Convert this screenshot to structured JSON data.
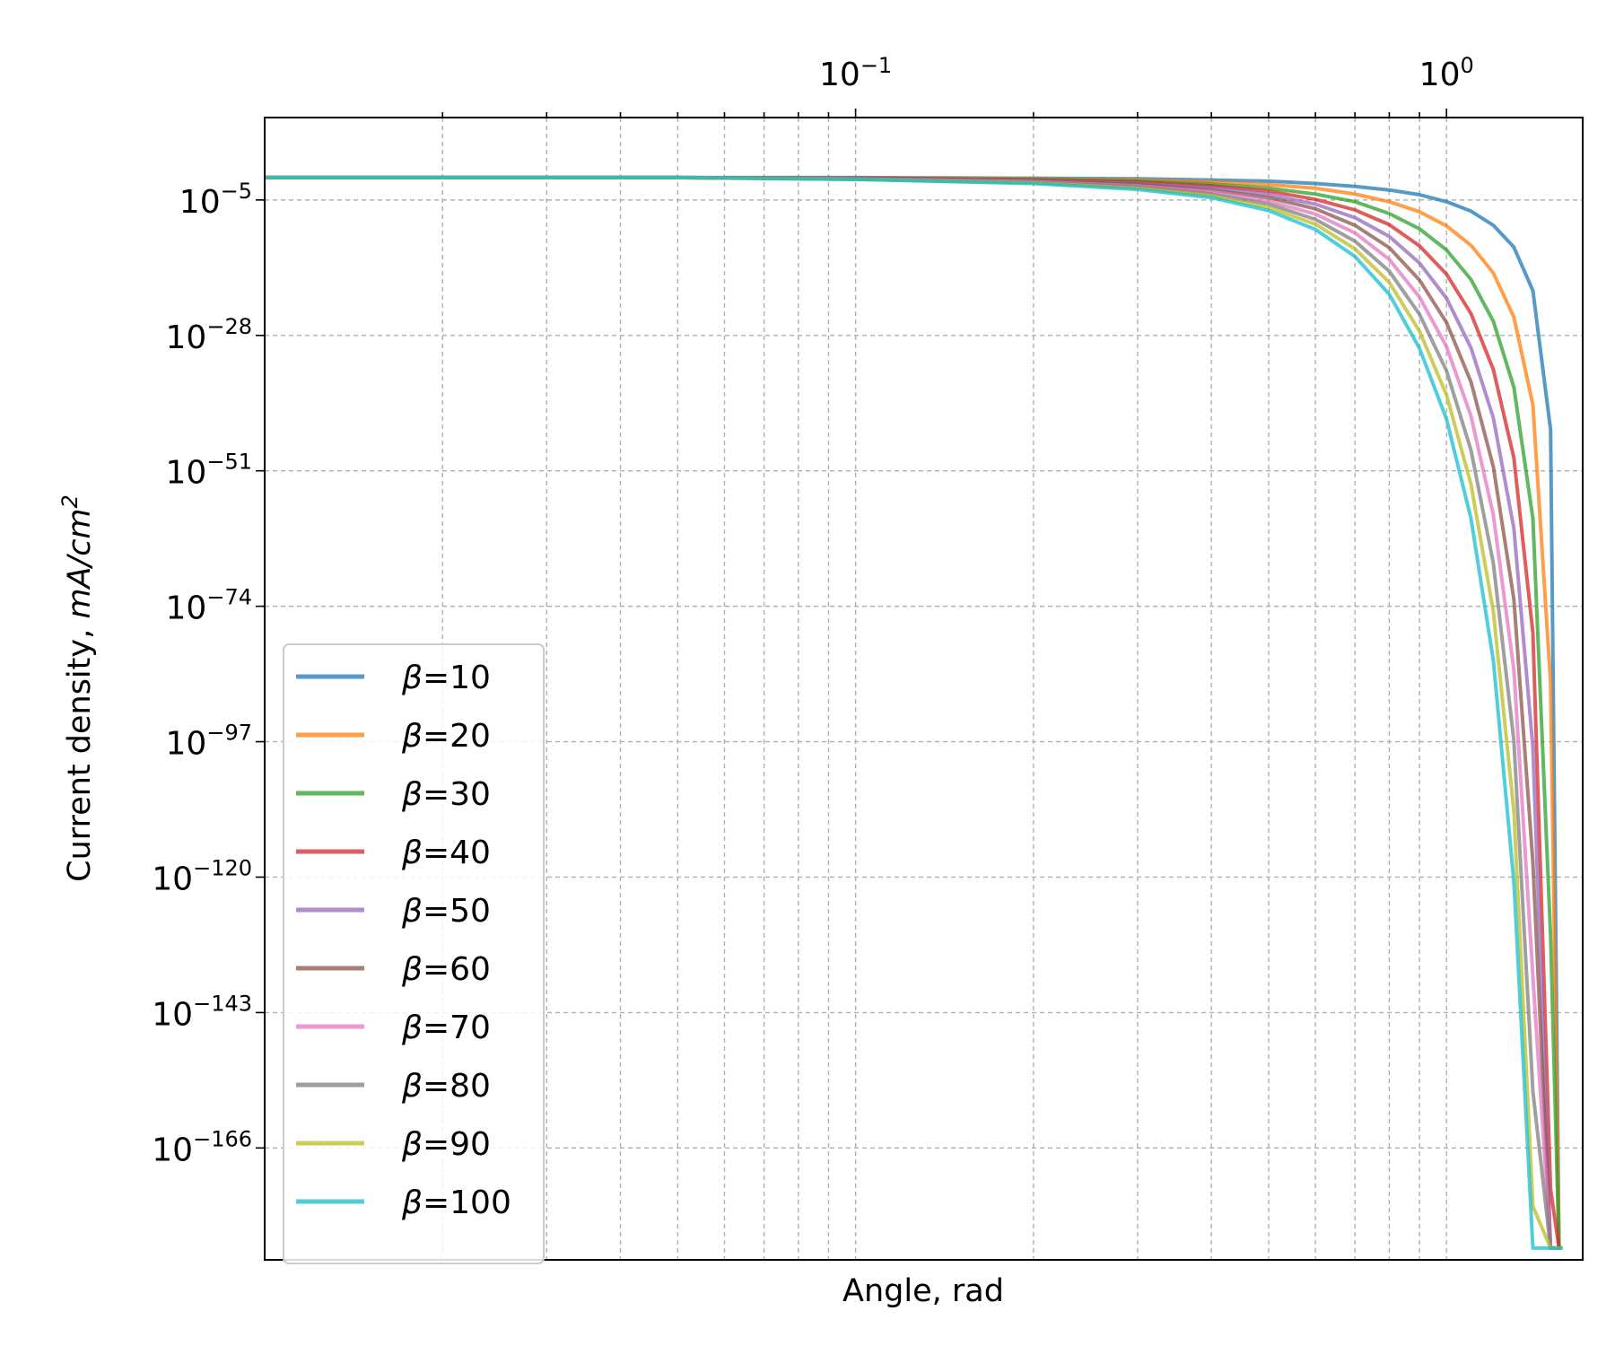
{
  "chart_data": {
    "type": "line",
    "xlabel": "Angle, rad",
    "ylabel_prefix": "Current density, ",
    "ylabel_unit_main": "mA/cm",
    "ylabel_unit_sup": "2",
    "x_scale": "log",
    "y_scale": "log",
    "xlim": [
      0.01,
      1.7
    ],
    "ylim_log10": [
      -185,
      9
    ],
    "x_tick_labels": [
      {
        "base": "10",
        "exp": "−1",
        "value": 0.1
      },
      {
        "base": "10",
        "exp": "0",
        "value": 1
      }
    ],
    "y_tick_labels": [
      {
        "base": "10",
        "exp": "−5",
        "log10": -5
      },
      {
        "base": "10",
        "exp": "−28",
        "log10": -28
      },
      {
        "base": "10",
        "exp": "−51",
        "log10": -51
      },
      {
        "base": "10",
        "exp": "−74",
        "log10": -74
      },
      {
        "base": "10",
        "exp": "−97",
        "log10": -97
      },
      {
        "base": "10",
        "exp": "−120",
        "log10": -120
      },
      {
        "base": "10",
        "exp": "−143",
        "log10": -143
      },
      {
        "base": "10",
        "exp": "−166",
        "log10": -166
      }
    ],
    "grid": true,
    "legend_position": "lower-left",
    "series": [
      {
        "name": "β=10",
        "beta": 10,
        "color": "#1f77b4"
      },
      {
        "name": "β=20",
        "beta": 20,
        "color": "#ff7f0e"
      },
      {
        "name": "β=30",
        "beta": 30,
        "color": "#2ca02c"
      },
      {
        "name": "β=40",
        "beta": 40,
        "color": "#d62728"
      },
      {
        "name": "β=50",
        "beta": 50,
        "color": "#9467bd"
      },
      {
        "name": "β=60",
        "beta": 60,
        "color": "#8c564b"
      },
      {
        "name": "β=70",
        "beta": 70,
        "color": "#e377c2"
      },
      {
        "name": "β=80",
        "beta": 80,
        "color": "#7f7f7f"
      },
      {
        "name": "β=90",
        "beta": 90,
        "color": "#bcbd22"
      },
      {
        "name": "β=100",
        "beta": 100,
        "color": "#17becf"
      }
    ],
    "x_sample_points": [
      0.01,
      0.05,
      0.1,
      0.2,
      0.3,
      0.4,
      0.5,
      0.6,
      0.7,
      0.8,
      0.9,
      1.0,
      1.1,
      1.2,
      1.3,
      1.4,
      1.5,
      1.55,
      1.57,
      1.5708
    ],
    "values_log10": [
      [
        -1.2,
        -1.2,
        -1.2,
        -1.3,
        -1.4,
        -1.6,
        -1.8,
        -2.2,
        -2.7,
        -3.3,
        -4.1,
        -5.3,
        -6.9,
        -9.3,
        -13.0,
        -20.4,
        -44,
        -183,
        -183,
        -183
      ],
      [
        -1.2,
        -1.2,
        -1.3,
        -1.4,
        -1.6,
        -1.9,
        -2.4,
        -3.0,
        -4.0,
        -5.3,
        -7.0,
        -9.4,
        -12.7,
        -17.4,
        -24.9,
        -39.8,
        -87,
        -183,
        -183,
        -183
      ],
      [
        -1.2,
        -1.2,
        -1.3,
        -1.5,
        -1.8,
        -2.3,
        -3.0,
        -4.0,
        -5.3,
        -7.3,
        -9.9,
        -13.5,
        -18.5,
        -25.6,
        -36.8,
        -59.1,
        -130,
        -183,
        -183,
        -183
      ],
      [
        -1.2,
        -1.2,
        -1.3,
        -1.6,
        -2.0,
        -2.6,
        -3.5,
        -4.9,
        -6.7,
        -9.2,
        -12.8,
        -17.6,
        -24.3,
        -33.8,
        -48.8,
        -78.5,
        -173,
        -183,
        -183,
        -183
      ],
      [
        -1.2,
        -1.2,
        -1.4,
        -1.7,
        -2.2,
        -2.9,
        -4.1,
        -5.7,
        -8.0,
        -11.2,
        -15.7,
        -21.7,
        -30.1,
        -42.0,
        -60.8,
        -98.0,
        -183,
        -183,
        -183,
        -183
      ],
      [
        -1.2,
        -1.2,
        -1.4,
        -1.8,
        -2.4,
        -3.3,
        -4.6,
        -6.5,
        -9.3,
        -13.1,
        -18.6,
        -25.8,
        -35.9,
        -50.3,
        -72.8,
        -117.5,
        -183,
        -183,
        -183,
        -183
      ],
      [
        -1.2,
        -1.2,
        -1.4,
        -1.9,
        -2.6,
        -3.6,
        -5.2,
        -7.4,
        -10.6,
        -15.1,
        -21.5,
        -29.9,
        -41.7,
        -58.5,
        -84.8,
        -136.9,
        -183,
        -183,
        -183,
        -183
      ],
      [
        -1.2,
        -1.2,
        -1.5,
        -2.0,
        -2.8,
        -4.0,
        -5.7,
        -8.3,
        -12.0,
        -17.1,
        -24.4,
        -34.0,
        -47.5,
        -66.7,
        -96.8,
        -156.4,
        -183,
        -183,
        -183,
        -183
      ],
      [
        -1.2,
        -1.2,
        -1.5,
        -2.1,
        -3.0,
        -4.3,
        -6.3,
        -9.1,
        -13.3,
        -19.0,
        -27.3,
        -38.1,
        -53.3,
        -74.9,
        -108.8,
        -175.9,
        -183,
        -183,
        -183,
        -183
      ],
      [
        -1.2,
        -1.2,
        -1.5,
        -2.2,
        -3.2,
        -4.6,
        -6.8,
        -10.0,
        -14.6,
        -21.0,
        -30.2,
        -42.2,
        -59.1,
        -83.2,
        -120.8,
        -183,
        -183,
        -183,
        -183,
        -183
      ]
    ]
  }
}
